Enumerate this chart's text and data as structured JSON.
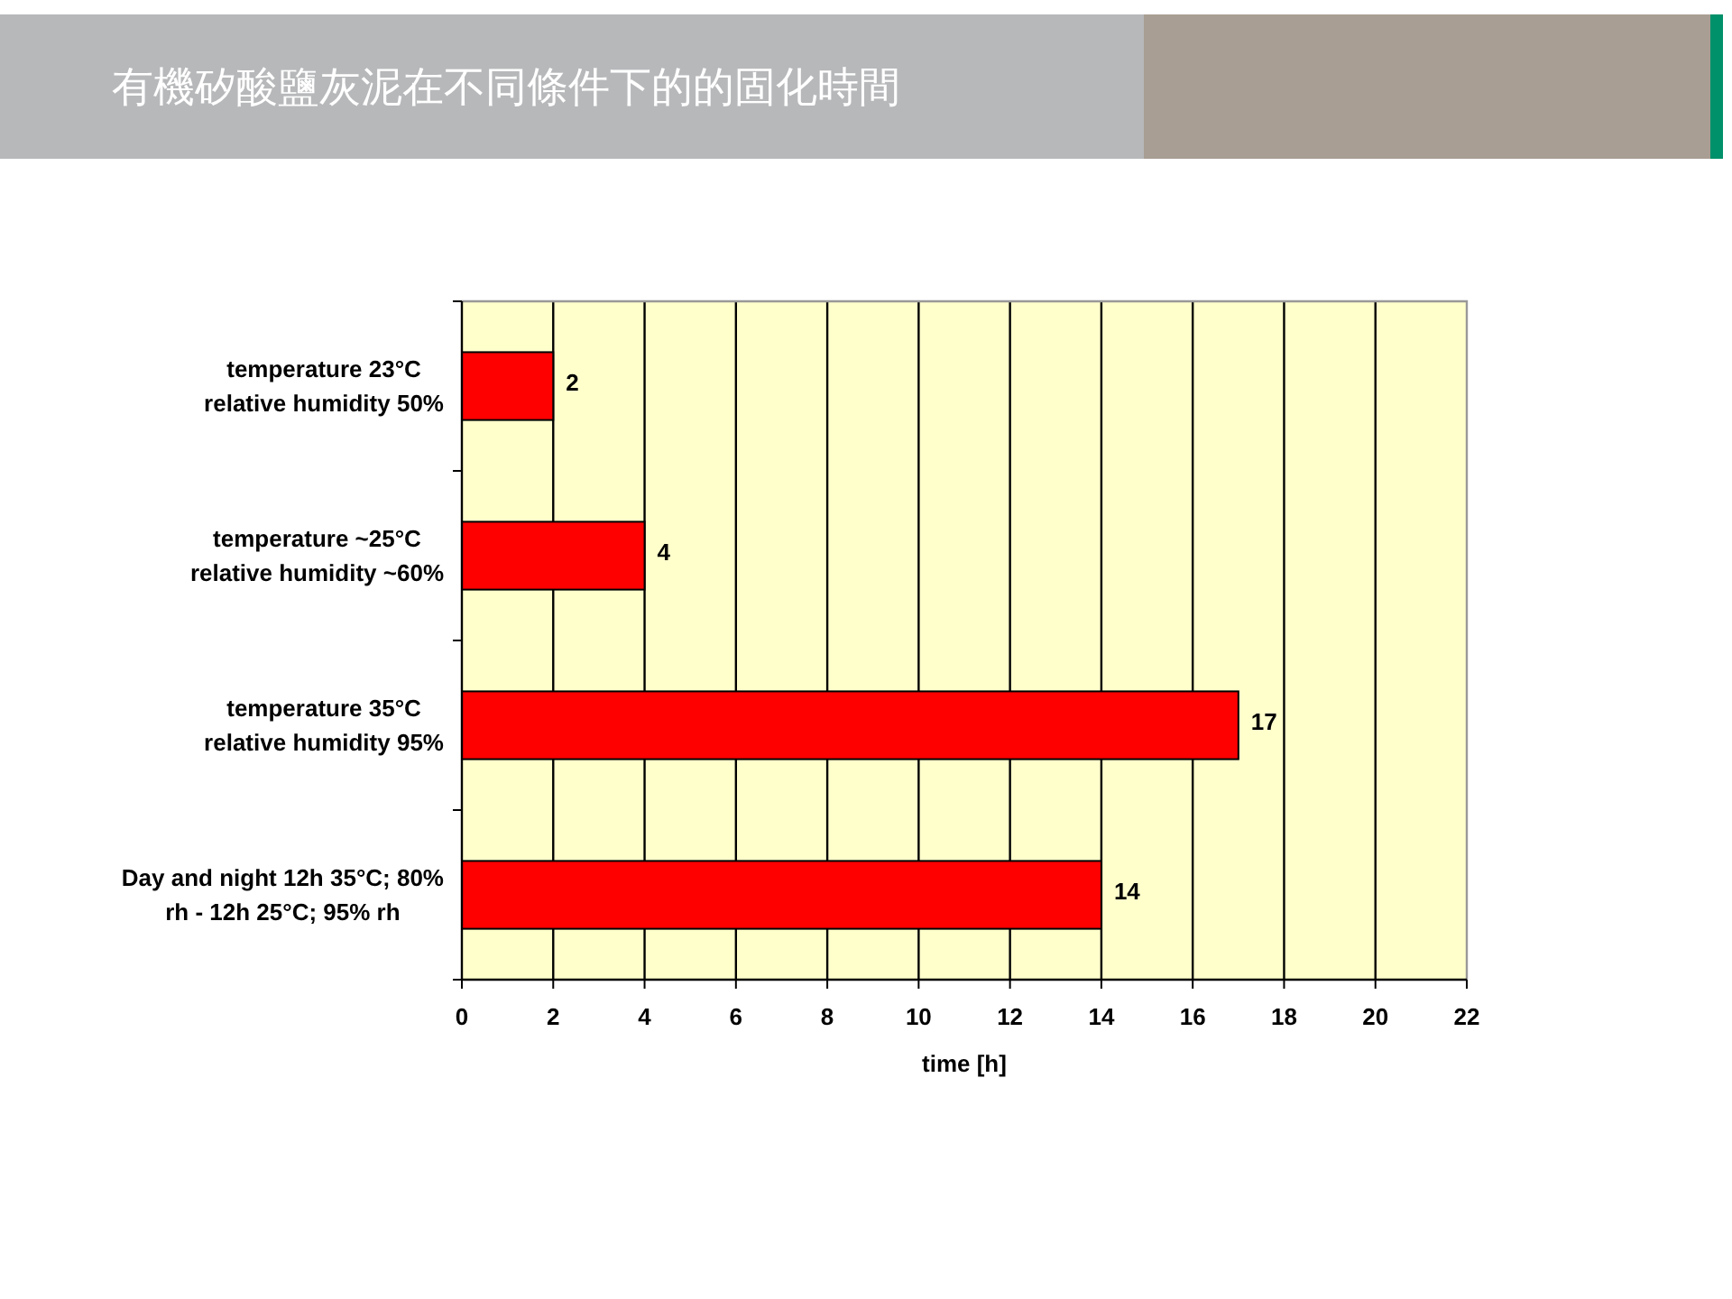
{
  "chart_data": {
    "type": "bar",
    "orientation": "horizontal",
    "title": "有機矽酸鹽灰泥在不同條件下的的固化時間",
    "xlabel": "time [h]",
    "categories": [
      "temperature 23°C\nrelative humidity 50%",
      "temperature ~25°C\nrelative humidity ~60%",
      "temperature 35°C\nrelative humidity 95%",
      "Day and night 12h 35°C; 80%\nrh - 12h 25°C; 95% rh"
    ],
    "values": [
      2,
      4,
      17,
      14
    ],
    "color": "#ff0000",
    "xlim": [
      0,
      22
    ],
    "xticks": [
      0,
      2,
      4,
      6,
      8,
      10,
      12,
      14,
      16,
      18,
      20,
      22
    ],
    "grid": "x",
    "data_labels": true
  }
}
